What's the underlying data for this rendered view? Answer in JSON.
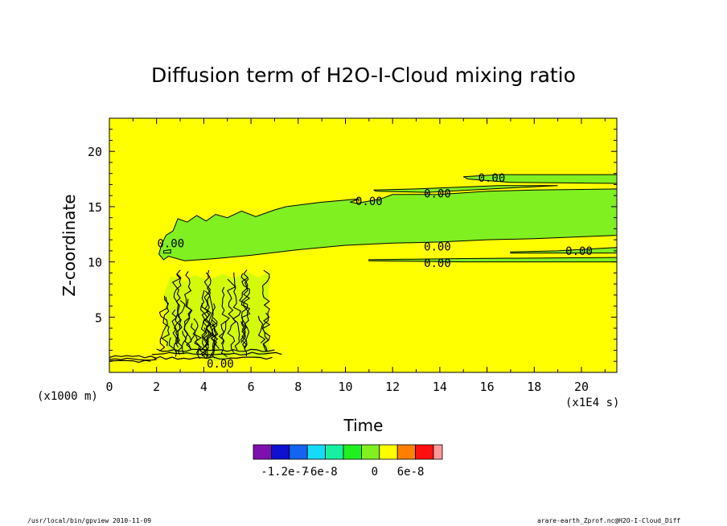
{
  "chart_data": {
    "type": "contour",
    "title": "Diffusion term of H2O-I-Cloud mixing ratio",
    "xlabel": "Time",
    "ylabel": "Z-coordinate",
    "x_unit_label": "(x1E4 s)",
    "y_unit_label": "(x1000 m)",
    "xlim": [
      0,
      21.5
    ],
    "ylim": [
      0,
      23
    ],
    "x_ticks": [
      0,
      2,
      4,
      6,
      8,
      10,
      12,
      14,
      16,
      18,
      20
    ],
    "y_ticks": [
      5,
      10,
      15,
      20
    ],
    "background_value": 0,
    "contour_labels": [
      {
        "text": "0.00",
        "x": 16.2,
        "y": 17.6
      },
      {
        "text": "0.00",
        "x": 13.9,
        "y": 16.2
      },
      {
        "text": "0.00",
        "x": 11.0,
        "y": 15.5
      },
      {
        "text": "0.00",
        "x": 13.9,
        "y": 11.4
      },
      {
        "text": "0.00",
        "x": 19.9,
        "y": 11.0
      },
      {
        "text": "0.00",
        "x": 13.9,
        "y": 9.9
      },
      {
        "text": "0.00",
        "x": 2.6,
        "y": 11.7
      },
      {
        "text": "0.00",
        "x": 4.7,
        "y": 0.8
      }
    ],
    "colorbar": {
      "colors": [
        "#7f10b0",
        "#1010d0",
        "#1464f0",
        "#14dcf8",
        "#16f0a0",
        "#20f020",
        "#80f020",
        "#ffff00",
        "#ff8000",
        "#ff1010",
        "#ff9898"
      ],
      "tick_labels": [
        "-1.2e-7",
        "-6e-8",
        "0",
        "6e-8"
      ]
    }
  },
  "footer": {
    "left": "/usr/local/bin/gpview  2010-11-09",
    "right": "arare-earth_Zprof.nc@H2O-I-Cloud_Diff"
  }
}
